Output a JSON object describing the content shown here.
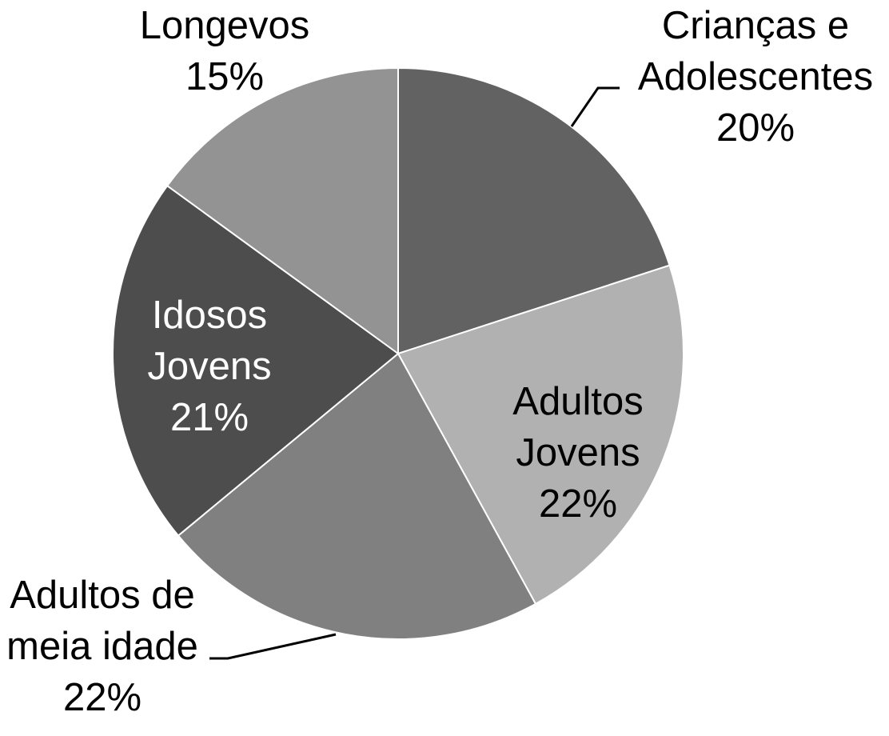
{
  "chart_data": {
    "type": "pie",
    "title": "",
    "slices": [
      {
        "label_lines": [
          "Crianças e",
          "Adolescentes"
        ],
        "percent_label": "20%",
        "value": 20,
        "color": "#626262",
        "label_color": "#000000"
      },
      {
        "label_lines": [
          "Adultos",
          "Jovens"
        ],
        "percent_label": "22%",
        "value": 22,
        "color": "#b1b1b1",
        "label_color": "#000000"
      },
      {
        "label_lines": [
          "Adultos de",
          "meia idade"
        ],
        "percent_label": "22%",
        "value": 22,
        "color": "#808080",
        "label_color": "#000000"
      },
      {
        "label_lines": [
          "Idosos",
          "Jovens"
        ],
        "percent_label": "21%",
        "value": 21,
        "color": "#4d4d4d",
        "label_color": "#ffffff"
      },
      {
        "label_lines": [
          "Longevos"
        ],
        "percent_label": "15%",
        "value": 15,
        "color": "#939393",
        "label_color": "#000000"
      }
    ],
    "start_angle": "12 o'clock",
    "direction": "clockwise",
    "slice_borders": "white",
    "legend": "none"
  }
}
